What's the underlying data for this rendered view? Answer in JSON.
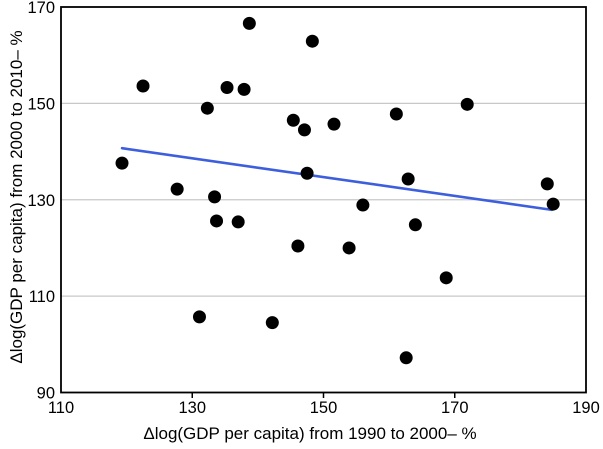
{
  "figure": {
    "background": "#FFFFFF"
  },
  "chart_data": {
    "type": "scatter",
    "title": "",
    "xlabel": "Δlog(GDP per capita) from 1990 to 2000– %",
    "ylabel": "Δlog(GDP per capita) from 2000 to 2010– %",
    "xlim": [
      110,
      190
    ],
    "ylim": [
      90,
      170
    ],
    "x_ticks": [
      110,
      130,
      150,
      170,
      190
    ],
    "y_ticks": [
      90,
      110,
      130,
      150,
      170
    ],
    "x_tick_marks": [
      130,
      150,
      170
    ],
    "gridlines": {
      "horizontal_at": [
        110,
        130,
        150
      ],
      "vertical": false
    },
    "legend": "none",
    "points": [
      [
        138.7,
        166.6
      ],
      [
        148.3,
        162.9
      ],
      [
        122.5,
        153.6
      ],
      [
        135.3,
        153.3
      ],
      [
        137.9,
        152.9
      ],
      [
        132.3,
        149.0
      ],
      [
        171.9,
        149.8
      ],
      [
        161.1,
        147.8
      ],
      [
        145.4,
        146.5
      ],
      [
        147.1,
        144.5
      ],
      [
        151.6,
        145.7
      ],
      [
        119.3,
        137.6
      ],
      [
        147.5,
        135.5
      ],
      [
        162.9,
        134.3
      ],
      [
        184.1,
        133.3
      ],
      [
        127.7,
        132.2
      ],
      [
        133.4,
        130.6
      ],
      [
        156.0,
        128.9
      ],
      [
        185.0,
        129.1
      ],
      [
        133.7,
        125.6
      ],
      [
        137.0,
        125.4
      ],
      [
        164.0,
        124.8
      ],
      [
        146.1,
        120.4
      ],
      [
        153.9,
        120.0
      ],
      [
        168.7,
        113.8
      ],
      [
        131.1,
        105.7
      ],
      [
        142.2,
        104.5
      ],
      [
        162.6,
        97.2
      ]
    ],
    "trendline": {
      "x1": 119.3,
      "y1": 140.7,
      "x2": 184.8,
      "y2": 127.9
    },
    "marker": {
      "shape": "circle",
      "radius_px": 6.5
    },
    "colors": {
      "point": "#000000",
      "trendline": "#3D5FDE",
      "grid": "#C8C8C8",
      "axis": "#000000",
      "text": "#000000"
    }
  }
}
